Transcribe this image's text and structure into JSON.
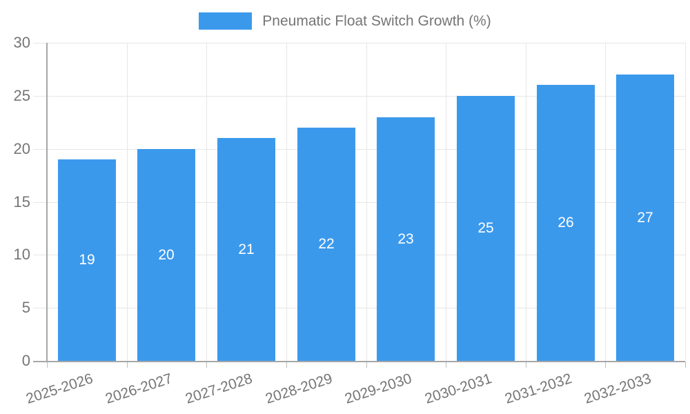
{
  "legend": {
    "label": "Pneumatic Float Switch Growth (%)"
  },
  "chart_data": {
    "type": "bar",
    "title": "Pneumatic Float Switch Growth (%)",
    "categories": [
      "2025-2026",
      "2026-2027",
      "2027-2028",
      "2028-2029",
      "2029-2030",
      "2030-2031",
      "2031-2032",
      "2032-2033"
    ],
    "values": [
      19,
      20,
      21,
      22,
      23,
      25,
      26,
      27
    ],
    "series": [
      {
        "name": "Pneumatic Float Switch Growth (%)",
        "values": [
          19,
          20,
          21,
          22,
          23,
          25,
          26,
          27
        ]
      }
    ],
    "xlabel": "",
    "ylabel": "",
    "ylim": [
      0,
      30
    ],
    "yticks": [
      0,
      5,
      10,
      15,
      20,
      25,
      30
    ],
    "grid": true,
    "legend_position": "top",
    "value_labels": "inside-center",
    "x_label_rotation_deg": -18,
    "colors": {
      "bar": "#3b99ec",
      "gridline": "#e6e6e6",
      "axis": "#a6a6a6",
      "x_tick": "#bdbdbd",
      "tick_label": "#757575",
      "legend_text": "#757575",
      "value_label": "#ffffff",
      "background": "#ffffff"
    }
  }
}
